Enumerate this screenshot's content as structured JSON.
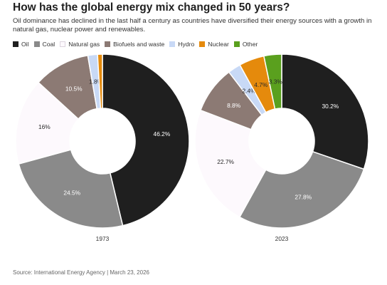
{
  "header": {
    "title": "How has the global energy mix changed in 50 years?",
    "subtitle": "Oil dominance has declined in the last half a century as countries have diversified their energy sources with a growth in natural gas, nuclear power and renewables."
  },
  "legend": [
    {
      "label": "Oil",
      "color": "#1f1f1f"
    },
    {
      "label": "Coal",
      "color": "#8a8a8a"
    },
    {
      "label": "Natural gas",
      "color": "#fdf9fd"
    },
    {
      "label": "Biofuels and waste",
      "color": "#8c7a74"
    },
    {
      "label": "Hydro",
      "color": "#c8d9f6"
    },
    {
      "label": "Nuclear",
      "color": "#e58a0c"
    },
    {
      "label": "Other",
      "color": "#5aa01e"
    }
  ],
  "chart_data": [
    {
      "type": "pie",
      "title": "1973",
      "categories": [
        "Oil",
        "Coal",
        "Natural gas",
        "Biofuels and waste",
        "Hydro",
        "Nuclear"
      ],
      "values": [
        46.2,
        24.5,
        16,
        10.5,
        1.8,
        0.9
      ],
      "labels": [
        "46.2%",
        "24.5%",
        "16%",
        "10.5%",
        "1.8%",
        ""
      ]
    },
    {
      "type": "pie",
      "title": "2023",
      "categories": [
        "Oil",
        "Coal",
        "Natural gas",
        "Biofuels and waste",
        "Hydro",
        "Nuclear",
        "Other"
      ],
      "values": [
        30.2,
        27.8,
        22.7,
        8.8,
        2.4,
        4.7,
        3.3
      ],
      "labels": [
        "30.2%",
        "27.8%",
        "22.7%",
        "8.8%",
        "2.4%",
        "4.7%",
        "3.3%"
      ]
    }
  ],
  "source": "Source: International Energy Agency | March 23, 2026"
}
